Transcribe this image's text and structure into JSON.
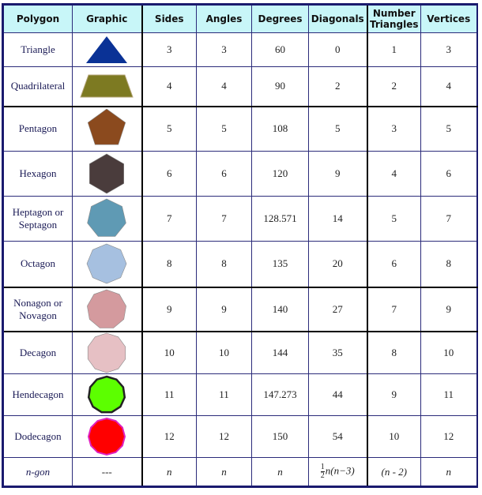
{
  "table": {
    "headers": {
      "polygon": "Polygon",
      "graphic": "Graphic",
      "sides": "Sides",
      "angles": "Angles",
      "degrees": "Degrees",
      "diagonals": "Diagonals",
      "triangles": "Number Triangles",
      "vertices": "Vertices"
    },
    "rows": [
      {
        "name": "Triangle",
        "shape": "triangle-icon",
        "color": "#0a3296",
        "sides": "3",
        "angles": "3",
        "degrees": "60",
        "diagonals": "0",
        "triangles": "1",
        "vertices": "3"
      },
      {
        "name": "Quadrilateral",
        "shape": "trapezoid-icon",
        "color": "#7d7a22",
        "sides": "4",
        "angles": "4",
        "degrees": "90",
        "diagonals": "2",
        "triangles": "2",
        "vertices": "4"
      },
      {
        "name": "Pentagon",
        "shape": "pentagon-icon",
        "color": "#8b4a1e",
        "sides": "5",
        "angles": "5",
        "degrees": "108",
        "diagonals": "5",
        "triangles": "3",
        "vertices": "5"
      },
      {
        "name": "Hexagon",
        "shape": "hexagon-icon",
        "color": "#4a3c3c",
        "sides": "6",
        "angles": "6",
        "degrees": "120",
        "diagonals": "9",
        "triangles": "4",
        "vertices": "6"
      },
      {
        "name": "Heptagon or Septagon",
        "shape": "heptagon-icon",
        "color": "#5f9ab4",
        "sides": "7",
        "angles": "7",
        "degrees": "128.571",
        "diagonals": "14",
        "triangles": "5",
        "vertices": "7"
      },
      {
        "name": "Octagon",
        "shape": "octagon-icon",
        "color": "#a6c0e0",
        "sides": "8",
        "angles": "8",
        "degrees": "135",
        "diagonals": "20",
        "triangles": "6",
        "vertices": "8"
      },
      {
        "name": "Nonagon or Novagon",
        "shape": "nonagon-icon",
        "color": "#d49a9e",
        "sides": "9",
        "angles": "9",
        "degrees": "140",
        "diagonals": "27",
        "triangles": "7",
        "vertices": "9"
      },
      {
        "name": "Decagon",
        "shape": "decagon-icon",
        "color": "#e6c0c4",
        "sides": "10",
        "angles": "10",
        "degrees": "144",
        "diagonals": "35",
        "triangles": "8",
        "vertices": "10"
      },
      {
        "name": "Hendecagon",
        "shape": "hendecagon-icon",
        "color": "#5cff00",
        "sides": "11",
        "angles": "11",
        "degrees": "147.273",
        "diagonals": "44",
        "triangles": "9",
        "vertices": "11"
      },
      {
        "name": "Dodecagon",
        "shape": "dodecagon-icon",
        "color": "#ff0000",
        "sides": "12",
        "angles": "12",
        "degrees": "150",
        "diagonals": "54",
        "triangles": "10",
        "vertices": "12"
      }
    ],
    "ngon": {
      "name": "n-gon",
      "graphic": "---",
      "sides": "n",
      "angles": "n",
      "degrees": "n",
      "diagonals_frac_num": "1",
      "diagonals_frac_den": "2",
      "diagonals_rest": "n(n−3)",
      "triangles": "(n - 2)",
      "vertices": "n"
    }
  }
}
